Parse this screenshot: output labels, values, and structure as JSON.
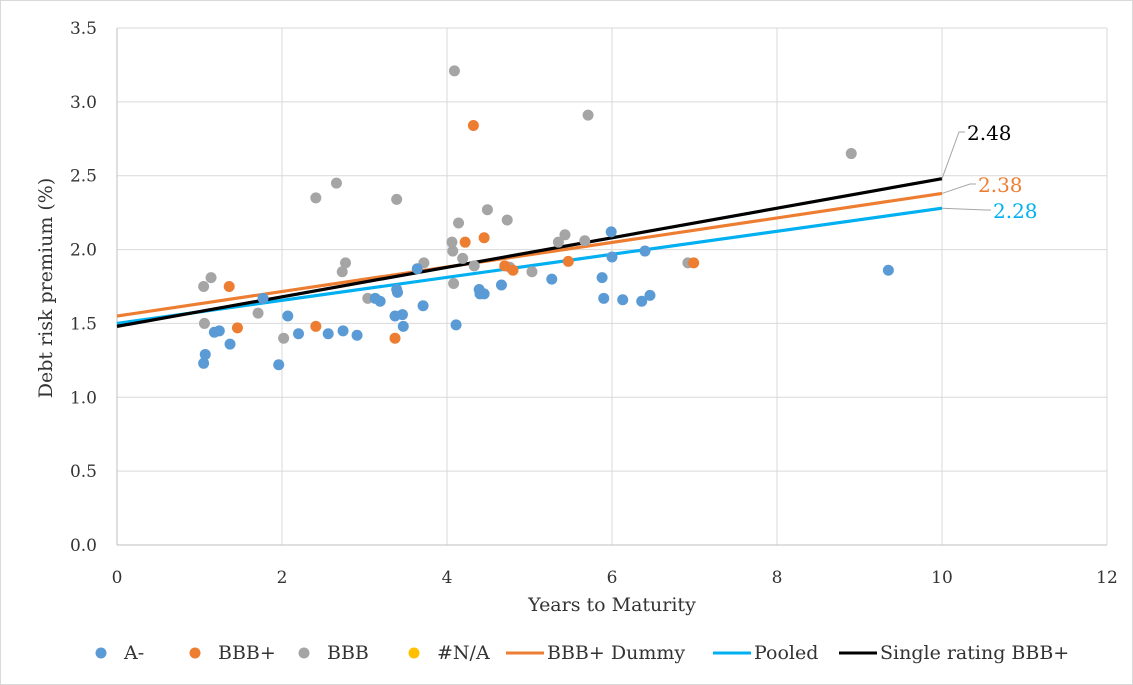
{
  "chart_data": {
    "type": "scatter",
    "xlabel": "Years to Maturity",
    "ylabel": "Debt risk premium (%)",
    "xlim": [
      0,
      12
    ],
    "ylim": [
      0,
      3.5
    ],
    "x_ticks": [
      "0",
      "2",
      "4",
      "6",
      "8",
      "10",
      "12"
    ],
    "y_ticks": [
      "0.0",
      "0.5",
      "1.0",
      "1.5",
      "2.0",
      "2.5",
      "3.0",
      "3.5"
    ],
    "grid": true,
    "legend_position": "bottom",
    "series": [
      {
        "name": "A-",
        "kind": "scatter",
        "color": "#5b9bd5",
        "points": [
          [
            1.05,
            1.23
          ],
          [
            1.07,
            1.29
          ],
          [
            1.18,
            1.44
          ],
          [
            1.24,
            1.45
          ],
          [
            1.37,
            1.36
          ],
          [
            1.77,
            1.67
          ],
          [
            1.96,
            1.22
          ],
          [
            2.07,
            1.55
          ],
          [
            2.2,
            1.43
          ],
          [
            2.56,
            1.43
          ],
          [
            2.74,
            1.45
          ],
          [
            2.91,
            1.42
          ],
          [
            3.13,
            1.67
          ],
          [
            3.19,
            1.65
          ],
          [
            3.37,
            1.55
          ],
          [
            3.39,
            1.73
          ],
          [
            3.4,
            1.71
          ],
          [
            3.46,
            1.56
          ],
          [
            3.47,
            1.48
          ],
          [
            3.64,
            1.87
          ],
          [
            3.71,
            1.62
          ],
          [
            4.11,
            1.49
          ],
          [
            4.39,
            1.73
          ],
          [
            4.4,
            1.7
          ],
          [
            4.45,
            1.7
          ],
          [
            4.66,
            1.76
          ],
          [
            5.27,
            1.8
          ],
          [
            5.88,
            1.81
          ],
          [
            5.9,
            1.67
          ],
          [
            5.99,
            2.12
          ],
          [
            6.0,
            1.95
          ],
          [
            6.13,
            1.66
          ],
          [
            6.36,
            1.65
          ],
          [
            6.4,
            1.99
          ],
          [
            6.46,
            1.69
          ],
          [
            9.35,
            1.86
          ]
        ]
      },
      {
        "name": "BBB+",
        "kind": "scatter",
        "color": "#ed7d31",
        "points": [
          [
            1.36,
            1.75
          ],
          [
            1.46,
            1.47
          ],
          [
            2.41,
            1.48
          ],
          [
            3.37,
            1.4
          ],
          [
            4.22,
            2.05
          ],
          [
            4.32,
            2.84
          ],
          [
            4.45,
            2.08
          ],
          [
            4.7,
            1.89
          ],
          [
            4.8,
            1.86
          ],
          [
            5.47,
            1.92
          ],
          [
            6.99,
            1.91
          ]
        ]
      },
      {
        "name": "BBB",
        "kind": "scatter",
        "color": "#a5a5a5",
        "points": [
          [
            1.05,
            1.75
          ],
          [
            1.06,
            1.5
          ],
          [
            1.14,
            1.81
          ],
          [
            1.71,
            1.57
          ],
          [
            2.02,
            1.4
          ],
          [
            2.41,
            2.35
          ],
          [
            2.66,
            2.45
          ],
          [
            2.73,
            1.85
          ],
          [
            2.77,
            1.91
          ],
          [
            3.04,
            1.67
          ],
          [
            3.39,
            2.34
          ],
          [
            3.72,
            1.91
          ],
          [
            4.06,
            2.05
          ],
          [
            4.07,
            1.99
          ],
          [
            4.08,
            1.77
          ],
          [
            4.09,
            3.21
          ],
          [
            4.14,
            2.18
          ],
          [
            4.19,
            1.94
          ],
          [
            4.33,
            1.89
          ],
          [
            4.49,
            2.27
          ],
          [
            4.73,
            2.2
          ],
          [
            4.76,
            1.88
          ],
          [
            5.03,
            1.85
          ],
          [
            5.35,
            2.05
          ],
          [
            5.43,
            2.1
          ],
          [
            5.67,
            2.06
          ],
          [
            5.71,
            2.91
          ],
          [
            6.92,
            1.91
          ],
          [
            8.9,
            2.65
          ]
        ]
      },
      {
        "name": "#N/A",
        "kind": "scatter",
        "color": "#ffc000",
        "points": []
      },
      {
        "name": "BBB+ Dummy",
        "kind": "line",
        "color": "#ed7d31",
        "points": [
          [
            0,
            1.55
          ],
          [
            10,
            2.38
          ]
        ]
      },
      {
        "name": "Pooled",
        "kind": "line",
        "color": "#00b0f0",
        "points": [
          [
            0,
            1.5
          ],
          [
            10,
            2.28
          ]
        ]
      },
      {
        "name": "Single rating BBB+",
        "kind": "line",
        "color": "#000000",
        "points": [
          [
            0,
            1.48
          ],
          [
            10,
            2.48
          ]
        ]
      }
    ],
    "annotations": [
      {
        "text": "2.48",
        "x": 10,
        "y": 2.48,
        "color": "#000000"
      },
      {
        "text": "2.38",
        "x": 10,
        "y": 2.38,
        "color": "#ed7d31"
      },
      {
        "text": "2.28",
        "x": 10,
        "y": 2.28,
        "color": "#00b0f0"
      }
    ]
  }
}
